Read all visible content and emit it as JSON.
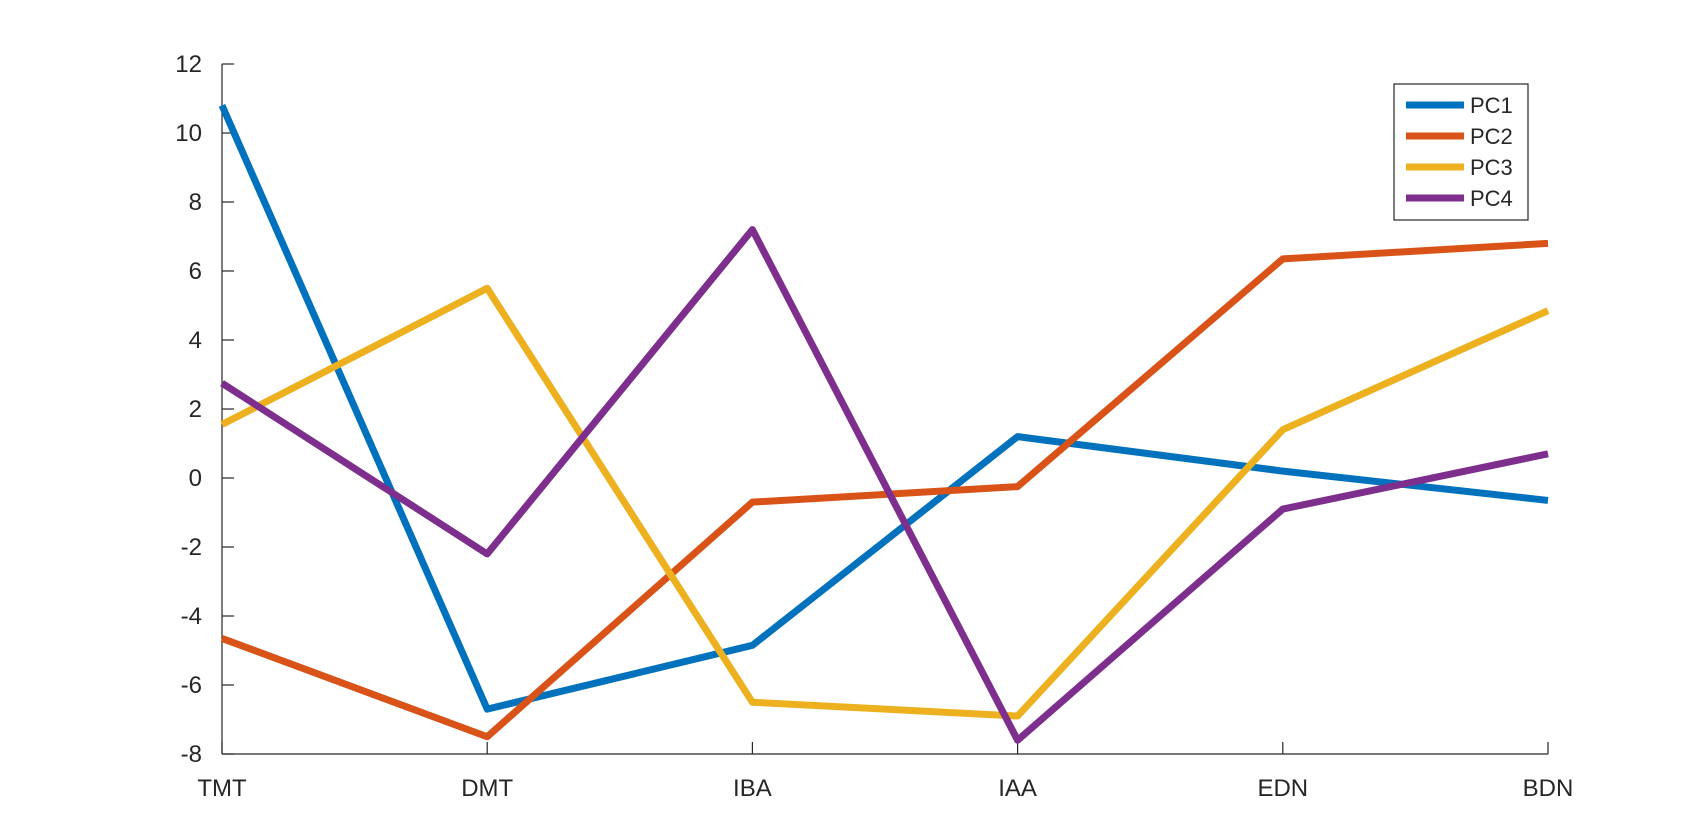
{
  "chart_data": {
    "type": "line",
    "categories": [
      "TMT",
      "DMT",
      "IBA",
      "IAA",
      "EDN",
      "BDN"
    ],
    "ylim": [
      -8,
      12
    ],
    "yticks": [
      12,
      10,
      8,
      6,
      4,
      2,
      0,
      -2,
      -4,
      -6,
      -8
    ],
    "ytick_labels": [
      "12",
      "10",
      "8",
      "6",
      "4",
      "2",
      "0",
      "-2",
      "-4",
      "-6",
      "-8"
    ],
    "grid": false,
    "legend_position": "top-right",
    "series": [
      {
        "name": "PC1",
        "color": "#0072BD",
        "values": [
          10.8,
          -6.7,
          -4.85,
          1.2,
          0.2,
          -0.65
        ]
      },
      {
        "name": "PC2",
        "color": "#D95319",
        "values": [
          -4.65,
          -7.5,
          -0.7,
          -0.25,
          6.35,
          6.8
        ]
      },
      {
        "name": "PC3",
        "color": "#EDB120",
        "values": [
          1.55,
          5.5,
          -6.5,
          -6.9,
          1.4,
          4.85
        ]
      },
      {
        "name": "PC4",
        "color": "#7E2F8E",
        "values": [
          2.75,
          -2.2,
          7.2,
          -7.6,
          -0.9,
          0.7
        ]
      }
    ]
  }
}
